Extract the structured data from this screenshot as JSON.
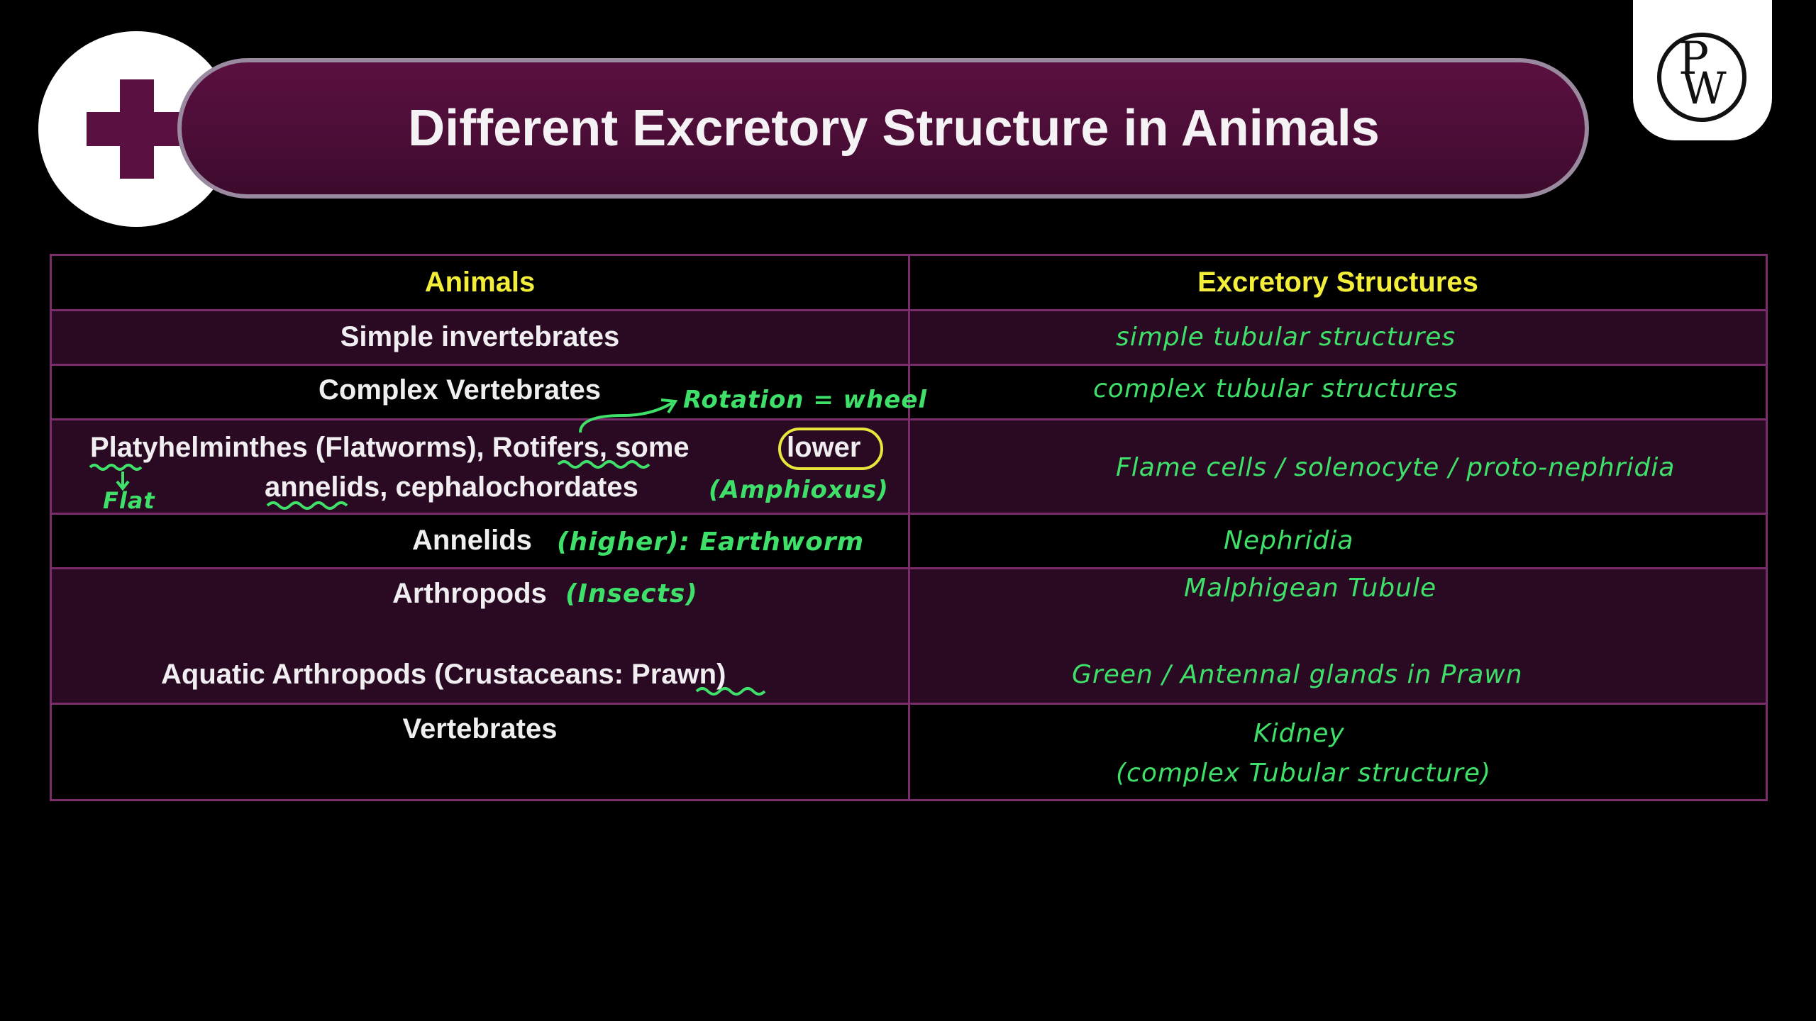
{
  "title": "Different Excretory Structure in Animals",
  "logo": {
    "letters": "PW",
    "icon": "pw-logo-icon"
  },
  "badge_icon": "plus-icon",
  "colors": {
    "banner": "#5a1040",
    "header_text": "#f3ee3a",
    "grid": "#7a2d6a",
    "handwriting": "#3fe06a"
  },
  "table": {
    "headers": [
      "Animals",
      "Excretory Structures"
    ],
    "rows": [
      {
        "animal": "Simple invertebrates",
        "structure": "simple tubular structures"
      },
      {
        "animal": "Complex Vertebrates",
        "note": "Rotation = wheel",
        "structure": "complex tubular structures"
      },
      {
        "animal_line1_a": "Platyhelminthes (Flatworms), Rotifers, some",
        "animal_line1_b": "lower",
        "animal_line2": "annelids, cephalochordates",
        "note_flat": "Flat",
        "note_amphioxus": "(Amphioxus)",
        "structure": "Flame cells / solenocyte / proto-nephridia"
      },
      {
        "animal": "Annelids",
        "note": "(higher): Earthworm",
        "structure": "Nephridia"
      },
      {
        "animal": "Arthropods",
        "note": "(Insects)",
        "animal2": "Aquatic Arthropods (Crustaceans: Prawn)",
        "structure": "Malphigean Tubule",
        "structure2": "Green / Antennal glands in Prawn"
      },
      {
        "animal": "Vertebrates",
        "structure": "Kidney",
        "structure2": "(complex Tubular structure)"
      }
    ]
  }
}
